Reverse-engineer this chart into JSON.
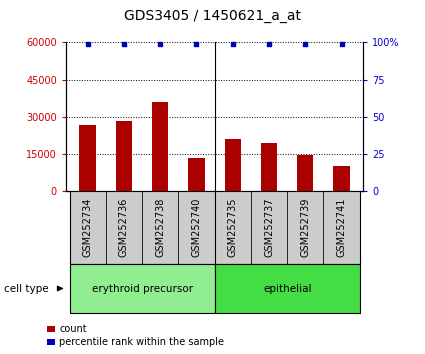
{
  "title": "GDS3405 / 1450621_a_at",
  "samples": [
    "GSM252734",
    "GSM252736",
    "GSM252738",
    "GSM252740",
    "GSM252735",
    "GSM252737",
    "GSM252739",
    "GSM252741"
  ],
  "counts": [
    26500,
    28500,
    36000,
    13500,
    21000,
    19500,
    14500,
    10000
  ],
  "percentile_ranks": [
    99,
    99,
    99,
    99,
    99,
    99,
    99,
    99
  ],
  "group_labels": [
    "erythroid precursor",
    "epithelial"
  ],
  "group_split": 4,
  "ylim_left": [
    0,
    60000
  ],
  "ylim_right": [
    0,
    100
  ],
  "yticks_left": [
    0,
    15000,
    30000,
    45000,
    60000
  ],
  "yticks_right": [
    0,
    25,
    50,
    75,
    100
  ],
  "bar_color": "#AA0000",
  "dot_color": "#0000BB",
  "bar_width": 0.45,
  "title_fontsize": 10,
  "tick_fontsize": 7,
  "label_fontsize": 7.5,
  "legend_fontsize": 7,
  "sample_bg_color": "#cccccc",
  "left_tick_color": "#CC0000",
  "right_tick_color": "#0000CC",
  "group_color_1": "#90EE90",
  "group_color_2": "#44DD44"
}
